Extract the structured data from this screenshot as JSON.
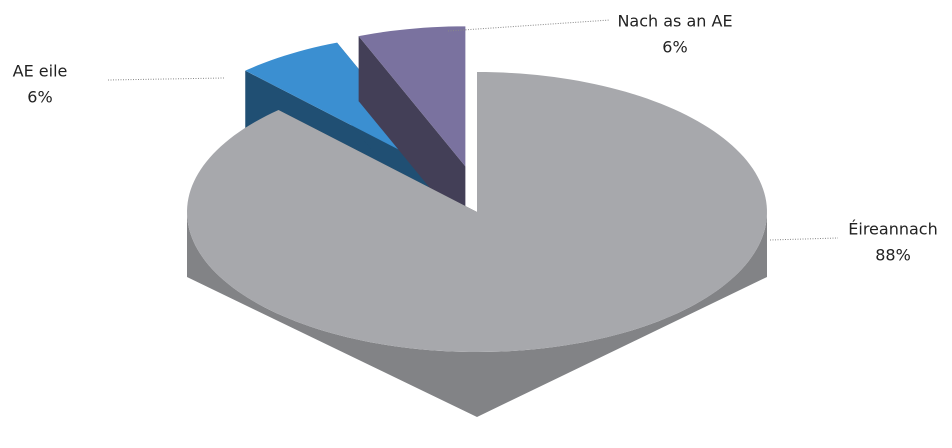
{
  "chart_data": {
    "type": "pie",
    "categories": [
      "Éireannach",
      "AE eile",
      "Nach as an AE"
    ],
    "values": [
      88,
      6,
      6
    ],
    "value_labels": [
      "88%",
      "6%",
      "6%"
    ],
    "colors": [
      "#a7a8ac",
      "#3b8fd1",
      "#7a729f"
    ],
    "explode": [
      false,
      true,
      true
    ]
  }
}
